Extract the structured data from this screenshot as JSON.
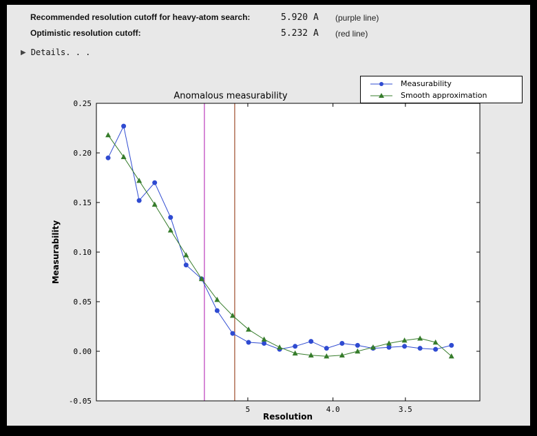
{
  "header": {
    "row1_label": "Recommended resolution cutoff for heavy-atom search:",
    "row1_value": "5.920 A",
    "row1_note": "(purple line)",
    "row2_label": "Optimistic resolution cutoff:",
    "row2_value": "5.232 A",
    "row2_note": "(red line)",
    "details_label": "Details. . ."
  },
  "colors": {
    "panel_bg": "#e8e8e8",
    "plot_bg": "#ffffff",
    "measurability_blue": "#2f4bd1",
    "smooth_green": "#367c2b",
    "purple_line": "#bb3cbb",
    "red_line": "#9c4a2a"
  },
  "chart_data": {
    "type": "line",
    "title": "Anomalous measurability",
    "xlabel": "Resolution",
    "ylabel": "Measurability",
    "x_axis_note": "x values are 1/d^2 (A^-2); resolution d decreases left to right",
    "xlim": [
      0,
      0.1013
    ],
    "ylim": [
      -0.05,
      0.25
    ],
    "grid": false,
    "yticks": {
      "values": [
        0.25,
        0.2,
        0.15,
        0.1,
        0.05,
        0.0,
        -0.05
      ],
      "labels": [
        "0.25",
        "0.20",
        "0.15",
        "0.10",
        "0.05",
        "0.00",
        "-0.05"
      ]
    },
    "xticks": {
      "values": [
        0.04,
        0.0625,
        0.08163
      ],
      "labels": [
        "5",
        "4.0",
        "3.5"
      ]
    },
    "x": [
      0.0031,
      0.0072,
      0.0113,
      0.0154,
      0.0196,
      0.0237,
      0.0278,
      0.0319,
      0.036,
      0.0402,
      0.0443,
      0.0484,
      0.0525,
      0.0567,
      0.0608,
      0.0649,
      0.069,
      0.0731,
      0.0773,
      0.0814,
      0.0855,
      0.0896,
      0.0938
    ],
    "x_resolution_A": [
      17.96,
      11.79,
      9.41,
      8.06,
      7.14,
      6.5,
      6.0,
      5.6,
      5.27,
      4.99,
      4.75,
      4.55,
      4.36,
      4.2,
      4.06,
      3.93,
      3.81,
      3.7,
      3.6,
      3.51,
      3.42,
      3.34,
      3.27
    ],
    "series": [
      {
        "name": "Measurability",
        "color": "#2f4bd1",
        "marker": "circle",
        "values": [
          0.195,
          0.227,
          0.152,
          0.17,
          0.135,
          0.087,
          0.073,
          0.041,
          0.018,
          0.009,
          0.008,
          0.002,
          0.005,
          0.01,
          0.003,
          0.008,
          0.006,
          0.003,
          0.004,
          0.005,
          0.003,
          0.002,
          0.006
        ]
      },
      {
        "name": "Smooth approximation",
        "color": "#367c2b",
        "marker": "triangle",
        "values": [
          0.218,
          0.196,
          0.172,
          0.148,
          0.122,
          0.097,
          0.073,
          0.052,
          0.036,
          0.022,
          0.012,
          0.004,
          -0.002,
          -0.004,
          -0.005,
          -0.004,
          0.0,
          0.004,
          0.008,
          0.011,
          0.013,
          0.009,
          -0.005
        ]
      }
    ],
    "vlines": [
      {
        "name": "purple-cutoff",
        "x": 0.02853,
        "color": "#bb3cbb",
        "resolution_label": "5.920 A"
      },
      {
        "name": "red-cutoff",
        "x": 0.03654,
        "color": "#9c4a2a",
        "resolution_label": "5.232 A"
      }
    ],
    "legend": {
      "position": "upper right",
      "entries": [
        "Measurability",
        "Smooth approximation"
      ]
    }
  }
}
